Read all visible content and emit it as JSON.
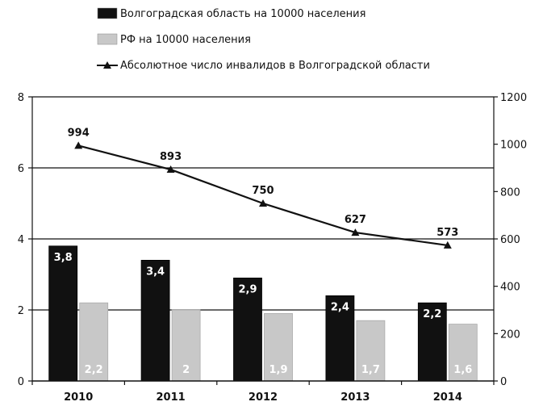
{
  "chart_data": {
    "type": "bar",
    "categories": [
      "2010",
      "2011",
      "2012",
      "2013",
      "2014"
    ],
    "series": [
      {
        "name": "Волгоградская область на 10000 населения",
        "type": "bar",
        "axis": "left",
        "color": "#111111",
        "values": [
          3.8,
          3.4,
          2.9,
          2.4,
          2.2
        ],
        "labels": [
          "3,8",
          "3,4",
          "2,9",
          "2,4",
          "2,2"
        ]
      },
      {
        "name": "РФ на 10000 населения",
        "type": "bar",
        "axis": "left",
        "color": "#c8c8c8",
        "values": [
          2.2,
          2.0,
          1.9,
          1.7,
          1.6
        ],
        "labels": [
          "2,2",
          "2",
          "1,9",
          "1,7",
          "1,6"
        ]
      },
      {
        "name": "Абсолютное число инвалидов в Волгоградской области",
        "type": "line",
        "axis": "right",
        "color": "#111111",
        "marker": "triangle",
        "values": [
          994,
          893,
          750,
          627,
          573
        ],
        "labels": [
          "994",
          "893",
          "750",
          "627",
          "573"
        ]
      }
    ],
    "y_left": {
      "min": 0,
      "max": 8,
      "ticks": [
        "0",
        "2",
        "4",
        "6",
        "8"
      ]
    },
    "y_right": {
      "min": 0,
      "max": 1200,
      "ticks": [
        "0",
        "200",
        "400",
        "600",
        "800",
        "1000",
        "1200"
      ]
    },
    "grid": true,
    "legend_position": "top-left"
  }
}
